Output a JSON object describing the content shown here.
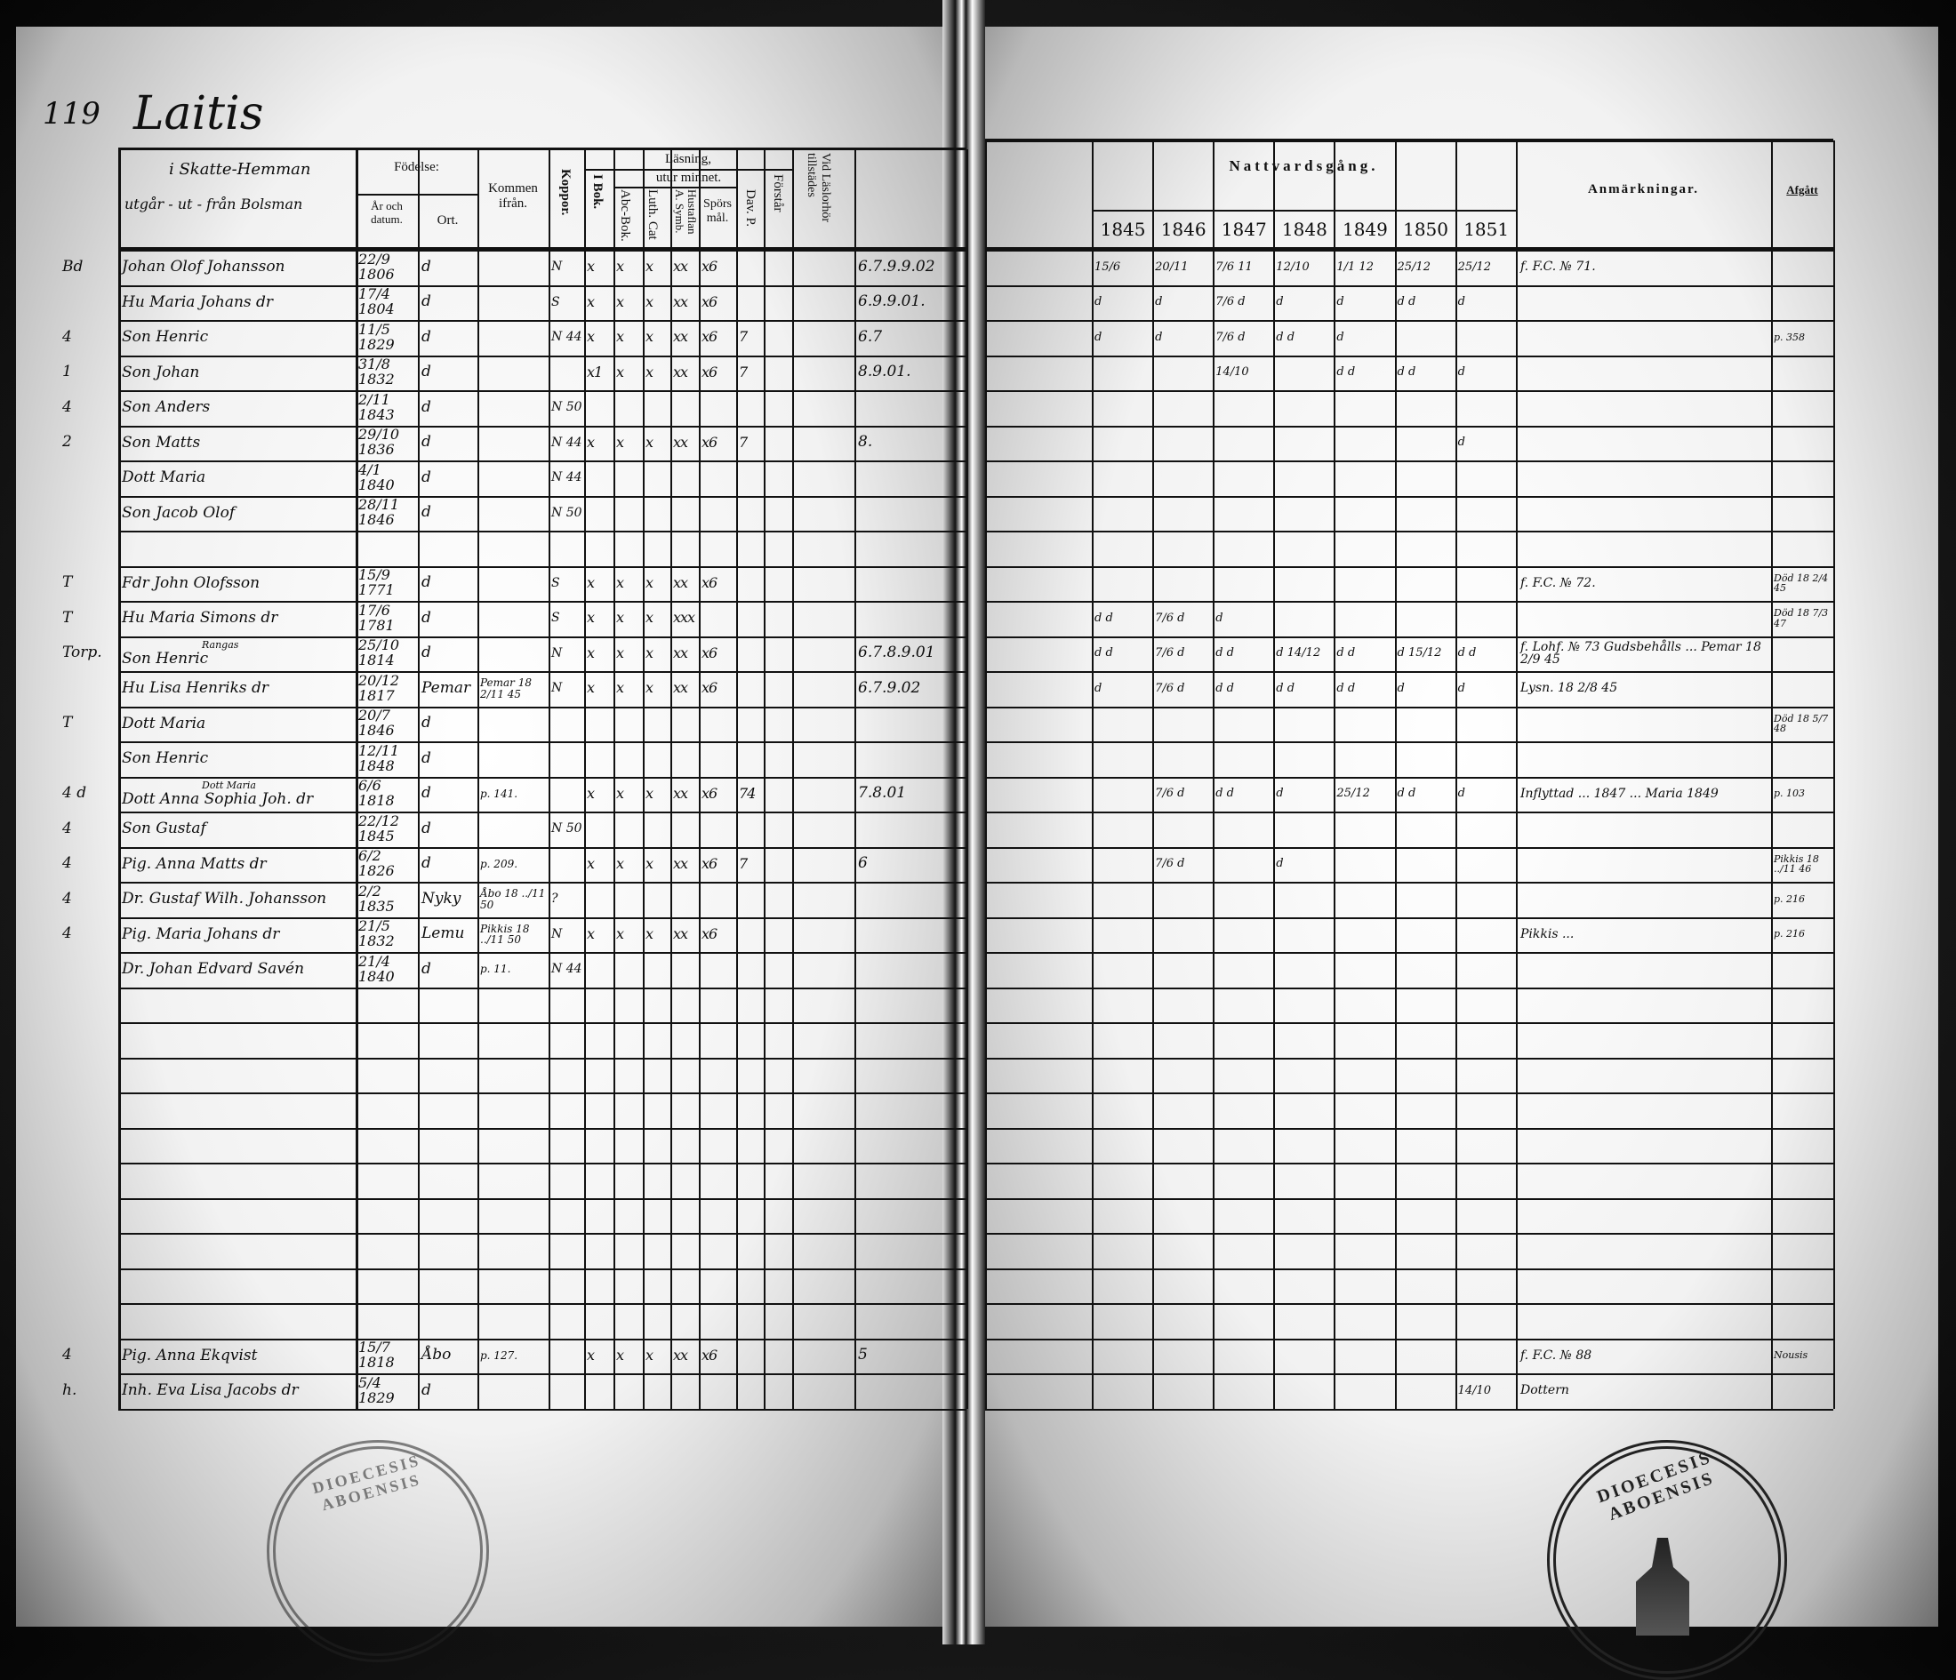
{
  "document": {
    "page_number": "119",
    "village": "Laitis",
    "left_header": {
      "household_note": "i Skatte-Hemman",
      "household_note2": "utgår - ut - från Bolsman",
      "birth": "Födelse:",
      "birth_date": "År och datum.",
      "birth_place": "Ort.",
      "came_from": "Kommen ifrån.",
      "smallpox": "Koppor.",
      "reading": "Läsning,",
      "by_heart": "utur minnet.",
      "book": "I Bok.",
      "abc": "Abc-Bok.",
      "catechism": "Luth. Cat",
      "household_table": "Hustaflan A. Symb.",
      "questions": "Spörsmål.",
      "david": "Dav. P.",
      "understands": "Förstår",
      "catechetical": "Vid Läslorhör tillstädes"
    },
    "right_header": {
      "communion": "Nattvardsgång.",
      "years": [
        "1845",
        "1846",
        "1847",
        "1848",
        "1849",
        "1850",
        "1851"
      ],
      "remarks": "Anmärkningar.",
      "departed": "Afgått"
    },
    "rows": [
      {
        "mark": "Bd",
        "name": "Johan Olof Johansson",
        "born": "22/9 1806",
        "place": "d",
        "from": "",
        "koppor": "N",
        "reading": [
          "x",
          "x",
          "x",
          "xx",
          "x6",
          "",
          "",
          ""
        ],
        "extra": "6.7.9.9.02",
        "years": [
          "15/6",
          "20/11",
          "7/6 11",
          "12/10",
          "1/1 12",
          "25/12",
          "25/12"
        ],
        "remark": "f. F.C. № 71.",
        "departed": ""
      },
      {
        "mark": "",
        "name": "Hu Maria Johans dr",
        "born": "17/4 1804",
        "place": "d",
        "from": "",
        "koppor": "S",
        "reading": [
          "x",
          "x",
          "x",
          "xx",
          "x6",
          "",
          "",
          ""
        ],
        "extra": "6.9.9.01.",
        "years": [
          "d",
          "d",
          "7/6 d",
          "d",
          "d",
          "d d",
          "d"
        ],
        "remark": "",
        "departed": ""
      },
      {
        "mark": "4",
        "name": "Son Henric",
        "born": "11/5 1829",
        "place": "d",
        "from": "",
        "koppor": "N 44",
        "reading": [
          "x",
          "x",
          "x",
          "xx",
          "x6",
          "7",
          "",
          ""
        ],
        "extra": "6.7",
        "years": [
          "d",
          "d",
          "7/6 d",
          "d d",
          "d",
          "",
          ""
        ],
        "remark": "",
        "departed": "p. 358"
      },
      {
        "mark": "1",
        "name": "Son Johan",
        "born": "31/8 1832",
        "place": "d",
        "from": "",
        "koppor": "",
        "reading": [
          "x1",
          "x",
          "x",
          "xx",
          "x6",
          "7",
          "",
          ""
        ],
        "extra": "8.9.01.",
        "years": [
          "",
          "",
          "14/10",
          "",
          "d d",
          "d d",
          "d"
        ],
        "remark": "",
        "departed": ""
      },
      {
        "mark": "4",
        "name": "Son Anders",
        "born": "2/11 1843",
        "place": "d",
        "from": "",
        "koppor": "N 50",
        "reading": [
          "",
          "",
          "",
          "",
          "",
          "",
          "",
          ""
        ],
        "extra": "",
        "years": [
          "",
          "",
          "",
          "",
          "",
          "",
          ""
        ],
        "remark": "",
        "departed": ""
      },
      {
        "mark": "2",
        "name": "Son Matts",
        "born": "29/10 1836",
        "place": "d",
        "from": "",
        "koppor": "N 44",
        "reading": [
          "x",
          "x",
          "x",
          "xx",
          "x6",
          "7",
          "",
          ""
        ],
        "extra": "8.",
        "years": [
          "",
          "",
          "",
          "",
          "",
          "",
          "d"
        ],
        "remark": "",
        "departed": ""
      },
      {
        "mark": "",
        "name": "Dott Maria",
        "born": "4/1 1840",
        "place": "d",
        "from": "",
        "koppor": "N 44",
        "reading": [
          "",
          "",
          "",
          "",
          "",
          "",
          "",
          ""
        ],
        "extra": "",
        "years": [
          "",
          "",
          "",
          "",
          "",
          "",
          ""
        ],
        "remark": "",
        "departed": ""
      },
      {
        "mark": "",
        "name": "Son Jacob Olof",
        "born": "28/11 1846",
        "place": "d",
        "from": "",
        "koppor": "N 50",
        "reading": [
          "",
          "",
          "",
          "",
          "",
          "",
          "",
          ""
        ],
        "extra": "",
        "years": [
          "",
          "",
          "",
          "",
          "",
          "",
          ""
        ],
        "remark": "",
        "departed": ""
      },
      {
        "mark": "",
        "name": "",
        "born": "",
        "place": "",
        "from": "",
        "koppor": "",
        "reading": [
          "",
          "",
          "",
          "",
          "",
          "",
          "",
          ""
        ],
        "extra": "",
        "years": [
          "",
          "",
          "",
          "",
          "",
          "",
          ""
        ],
        "remark": "",
        "departed": ""
      },
      {
        "mark": "T",
        "name": "Fdr John Olofsson",
        "born": "15/9 1771",
        "place": "d",
        "from": "",
        "koppor": "S",
        "reading": [
          "x",
          "x",
          "x",
          "xx",
          "x6",
          "",
          "",
          ""
        ],
        "extra": "",
        "years": [
          "",
          "",
          "",
          "",
          "",
          "",
          ""
        ],
        "remark": "f. F.C. № 72.",
        "departed": "Död 18 2/4 45"
      },
      {
        "mark": "T",
        "name": "Hu Maria Simons dr",
        "born": "17/6 1781",
        "place": "d",
        "from": "",
        "koppor": "S",
        "reading": [
          "x",
          "x",
          "x",
          "xxx",
          "",
          "",
          "",
          ""
        ],
        "extra": "",
        "years": [
          "d d",
          "7/6 d",
          "d",
          "",
          "",
          "",
          ""
        ],
        "remark": "",
        "departed": "Död 18 7/3 47"
      },
      {
        "mark": "Torp.",
        "name": "Son Henric",
        "note": "Rangas",
        "born": "25/10 1814",
        "place": "d",
        "from": "",
        "koppor": "N",
        "reading": [
          "x",
          "x",
          "x",
          "xx",
          "x6",
          "",
          "",
          ""
        ],
        "extra": "6.7.8.9.01",
        "years": [
          "d d",
          "7/6 d",
          "d d",
          "d 14/12",
          "d d",
          "d 15/12",
          "d d"
        ],
        "remark": "f. Lohf. № 73 Gudsbehålls ... Pemar 18 2/9 45",
        "departed": ""
      },
      {
        "mark": "",
        "name": "Hu Lisa Henriks dr",
        "born": "20/12 1817",
        "place": "Pemar",
        "from": "Pemar 18 2/11 45",
        "koppor": "N",
        "reading": [
          "x",
          "x",
          "x",
          "xx",
          "x6",
          "",
          "",
          ""
        ],
        "extra": "6.7.9.02",
        "years": [
          "d",
          "7/6 d",
          "d d",
          "d d",
          "d d",
          "d",
          "d"
        ],
        "remark": "Lysn. 18 2/8 45",
        "departed": ""
      },
      {
        "mark": "T",
        "name": "Dott Maria",
        "born": "20/7 1846",
        "place": "d",
        "from": "",
        "koppor": "",
        "reading": [
          "",
          "",
          "",
          "",
          "",
          "",
          "",
          ""
        ],
        "extra": "",
        "years": [
          "",
          "",
          "",
          "",
          "",
          "",
          ""
        ],
        "remark": "",
        "departed": "Död 18 5/7 48"
      },
      {
        "mark": "",
        "name": "Son Henric",
        "born": "12/11 1848",
        "place": "d",
        "from": "",
        "koppor": "",
        "reading": [
          "",
          "",
          "",
          "",
          "",
          "",
          "",
          ""
        ],
        "extra": "",
        "years": [
          "",
          "",
          "",
          "",
          "",
          "",
          ""
        ],
        "remark": "",
        "departed": ""
      },
      {
        "mark": "4 d",
        "name": "Dott Anna Sophia Joh. dr",
        "note": "Dott Maria",
        "born": "6/6 1818",
        "place": "d",
        "from": "p. 141.",
        "koppor": "",
        "reading": [
          "x",
          "x",
          "x",
          "xx",
          "x6",
          "74",
          "",
          ""
        ],
        "extra": "7.8.01",
        "years": [
          "",
          "7/6 d",
          "d d",
          "d",
          "25/12",
          "d d",
          "d"
        ],
        "remark": "Inflyttad ... 1847 ... Maria 1849",
        "departed": "p. 103"
      },
      {
        "mark": "4",
        "name": "Son Gustaf",
        "born": "22/12 1845",
        "place": "d",
        "from": "",
        "koppor": "N 50",
        "reading": [
          "",
          "",
          "",
          "",
          "",
          "",
          "",
          ""
        ],
        "extra": "",
        "years": [
          "",
          "",
          "",
          "",
          "",
          "",
          ""
        ],
        "remark": "",
        "departed": ""
      },
      {
        "mark": "4",
        "name": "Pig. Anna Matts dr",
        "born": "6/2 1826",
        "place": "d",
        "from": "p. 209.",
        "koppor": "",
        "reading": [
          "x",
          "x",
          "x",
          "xx",
          "x6",
          "7",
          "",
          ""
        ],
        "extra": "6",
        "years": [
          "",
          "7/6 d",
          "",
          "d",
          "",
          "",
          ""
        ],
        "remark": "",
        "departed": "Pikkis 18 ../11 46"
      },
      {
        "mark": "4",
        "name": "Dr. Gustaf Wilh. Johansson",
        "born": "2/2 1835",
        "place": "Nyky",
        "from": "Åbo 18 ../11 50",
        "koppor": "?",
        "reading": [
          "",
          "",
          "",
          "",
          "",
          "",
          "",
          ""
        ],
        "extra": "",
        "years": [
          "",
          "",
          "",
          "",
          "",
          "",
          ""
        ],
        "remark": "",
        "departed": "p. 216"
      },
      {
        "mark": "4",
        "name": "Pig. Maria Johans dr",
        "born": "21/5 1832",
        "place": "Lemu",
        "from": "Pikkis 18 ../11 50",
        "koppor": "N",
        "reading": [
          "x",
          "x",
          "x",
          "xx",
          "x6",
          "",
          "",
          ""
        ],
        "extra": "",
        "years": [
          "",
          "",
          "",
          "",
          "",
          "",
          ""
        ],
        "remark": "Pikkis ...",
        "departed": "p. 216"
      },
      {
        "mark": "",
        "name": "Dr. Johan Edvard Savén",
        "born": "21/4 1840",
        "place": "d",
        "from": "p. 11.",
        "koppor": "N 44",
        "reading": [
          "",
          "",
          "",
          "",
          "",
          "",
          "",
          ""
        ],
        "extra": "",
        "years": [
          "",
          "",
          "",
          "",
          "",
          "",
          ""
        ],
        "remark": "",
        "departed": ""
      },
      {
        "mark": "",
        "name": "",
        "born": "",
        "place": "",
        "from": "",
        "koppor": "",
        "reading": [
          "",
          "",
          "",
          "",
          "",
          "",
          "",
          ""
        ],
        "extra": "",
        "years": [
          "",
          "",
          "",
          "",
          "",
          "",
          ""
        ],
        "remark": "",
        "departed": ""
      },
      {
        "mark": "",
        "name": "",
        "born": "",
        "place": "",
        "from": "",
        "koppor": "",
        "reading": [
          "",
          "",
          "",
          "",
          "",
          "",
          "",
          ""
        ],
        "extra": "",
        "years": [
          "",
          "",
          "",
          "",
          "",
          "",
          ""
        ],
        "remark": "",
        "departed": ""
      },
      {
        "mark": "",
        "name": "",
        "born": "",
        "place": "",
        "from": "",
        "koppor": "",
        "reading": [
          "",
          "",
          "",
          "",
          "",
          "",
          "",
          ""
        ],
        "extra": "",
        "years": [
          "",
          "",
          "",
          "",
          "",
          "",
          ""
        ],
        "remark": "",
        "departed": ""
      },
      {
        "mark": "",
        "name": "",
        "born": "",
        "place": "",
        "from": "",
        "koppor": "",
        "reading": [
          "",
          "",
          "",
          "",
          "",
          "",
          "",
          ""
        ],
        "extra": "",
        "years": [
          "",
          "",
          "",
          "",
          "",
          "",
          ""
        ],
        "remark": "",
        "departed": ""
      },
      {
        "mark": "",
        "name": "",
        "born": "",
        "place": "",
        "from": "",
        "koppor": "",
        "reading": [
          "",
          "",
          "",
          "",
          "",
          "",
          "",
          ""
        ],
        "extra": "",
        "years": [
          "",
          "",
          "",
          "",
          "",
          "",
          ""
        ],
        "remark": "",
        "departed": ""
      },
      {
        "mark": "",
        "name": "",
        "born": "",
        "place": "",
        "from": "",
        "koppor": "",
        "reading": [
          "",
          "",
          "",
          "",
          "",
          "",
          "",
          ""
        ],
        "extra": "",
        "years": [
          "",
          "",
          "",
          "",
          "",
          "",
          ""
        ],
        "remark": "",
        "departed": ""
      },
      {
        "mark": "",
        "name": "",
        "born": "",
        "place": "",
        "from": "",
        "koppor": "",
        "reading": [
          "",
          "",
          "",
          "",
          "",
          "",
          "",
          ""
        ],
        "extra": "",
        "years": [
          "",
          "",
          "",
          "",
          "",
          "",
          ""
        ],
        "remark": "",
        "departed": ""
      },
      {
        "mark": "",
        "name": "",
        "born": "",
        "place": "",
        "from": "",
        "koppor": "",
        "reading": [
          "",
          "",
          "",
          "",
          "",
          "",
          "",
          ""
        ],
        "extra": "",
        "years": [
          "",
          "",
          "",
          "",
          "",
          "",
          ""
        ],
        "remark": "",
        "departed": ""
      },
      {
        "mark": "",
        "name": "",
        "born": "",
        "place": "",
        "from": "",
        "koppor": "",
        "reading": [
          "",
          "",
          "",
          "",
          "",
          "",
          "",
          ""
        ],
        "extra": "",
        "years": [
          "",
          "",
          "",
          "",
          "",
          "",
          ""
        ],
        "remark": "",
        "departed": ""
      },
      {
        "mark": "",
        "name": "",
        "born": "",
        "place": "",
        "from": "",
        "koppor": "",
        "reading": [
          "",
          "",
          "",
          "",
          "",
          "",
          "",
          ""
        ],
        "extra": "",
        "years": [
          "",
          "",
          "",
          "",
          "",
          "",
          ""
        ],
        "remark": "",
        "departed": ""
      },
      {
        "mark": "4",
        "name": "Pig. Anna Ekqvist",
        "born": "15/7 1818",
        "place": "Åbo",
        "from": "p. 127.",
        "koppor": "",
        "reading": [
          "x",
          "x",
          "x",
          "xx",
          "x6",
          "",
          "",
          ""
        ],
        "extra": "5",
        "years": [
          "",
          "",
          "",
          "",
          "",
          "",
          ""
        ],
        "remark": "f. F.C. № 88",
        "departed": "Nousis"
      },
      {
        "mark": "h.",
        "name": "Inh. Eva Lisa Jacobs dr",
        "born": "5/4 1829",
        "place": "d",
        "from": "",
        "koppor": "",
        "reading": [
          "",
          "",
          "",
          "",
          "",
          "",
          "",
          ""
        ],
        "extra": "",
        "years": [
          "",
          "",
          "",
          "",
          "",
          "",
          "14/10"
        ],
        "remark": "Dottern",
        "departed": ""
      }
    ],
    "stamps": {
      "left": "DIOECESIS ABOENSIS",
      "right": "DIOECESIS ABOENSIS"
    }
  }
}
